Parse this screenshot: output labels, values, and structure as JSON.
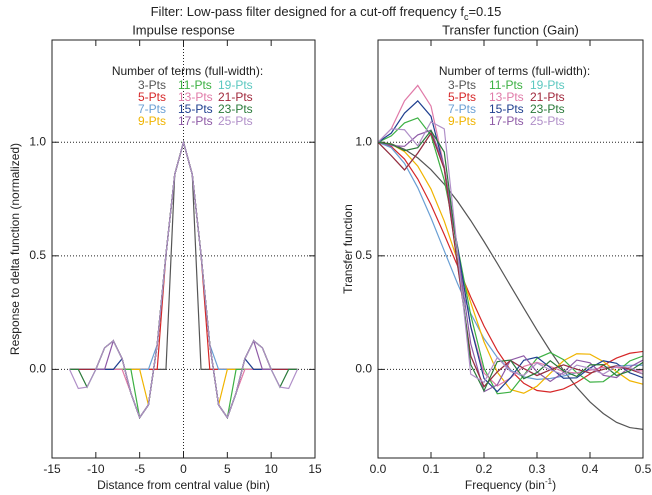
{
  "title": "Filter: Low-pass filter designed for a cut-off frequency f",
  "title_subscript": "c",
  "title_suffix": "=0.15",
  "chart_data": [
    {
      "type": "line",
      "title": "Impulse response",
      "xlabel": "Distance from central value (bin)",
      "ylabel": "Response to delta function (normalized)",
      "legend_title": "Number of terms (full-width):",
      "grid": true,
      "zero_vline": true,
      "xlim": [
        -15,
        15
      ],
      "xticks": [
        -15,
        -10,
        -5,
        0,
        5,
        10,
        15
      ],
      "ylim": [
        -0.39,
        1.45
      ],
      "yticks": [
        {
          "value": 0,
          "label": "0.0"
        },
        {
          "value": 0.5,
          "label": "0.5"
        },
        {
          "value": 1,
          "label": "1.0"
        }
      ],
      "x": [
        -13,
        -12,
        -11,
        -10,
        -9,
        -8,
        -7,
        -6,
        -5,
        -4,
        -3,
        -2,
        -1,
        0,
        1,
        2,
        3,
        4,
        5,
        6,
        7,
        8,
        9,
        10,
        11,
        12,
        13
      ],
      "series": [
        {
          "name": "3-Pts",
          "color": "#555555",
          "values": [
            0,
            0,
            0,
            0,
            0,
            0,
            0,
            0,
            0,
            0,
            0,
            0,
            0.858,
            1,
            0.858,
            0,
            0,
            0,
            0,
            0,
            0,
            0,
            0,
            0,
            0,
            0,
            0
          ]
        },
        {
          "name": "5-Pts",
          "color": "#d62728",
          "values": [
            0,
            0,
            0,
            0,
            0,
            0,
            0,
            0,
            0,
            0,
            0,
            0.505,
            0.858,
            1,
            0.858,
            0.505,
            0,
            0,
            0,
            0,
            0,
            0,
            0,
            0,
            0,
            0,
            0
          ]
        },
        {
          "name": "7-Pts",
          "color": "#6a9fd4",
          "values": [
            0,
            0,
            0,
            0,
            0,
            0,
            0,
            0,
            0,
            0,
            0.109,
            0.505,
            0.858,
            1,
            0.858,
            0.505,
            0.109,
            0,
            0,
            0,
            0,
            0,
            0,
            0,
            0,
            0,
            0
          ]
        },
        {
          "name": "9-Pts",
          "color": "#f0b400",
          "values": [
            0,
            0,
            0,
            0,
            0,
            0,
            0,
            0,
            0,
            -0.156,
            0.109,
            0.505,
            0.858,
            1,
            0.858,
            0.505,
            0.109,
            -0.156,
            0,
            0,
            0,
            0,
            0,
            0,
            0,
            0,
            0
          ]
        },
        {
          "name": "11-Pts",
          "color": "#3cb043",
          "values": [
            0,
            0,
            0,
            0,
            0,
            0,
            0,
            0,
            -0.212,
            -0.156,
            0.109,
            0.505,
            0.858,
            1,
            0.858,
            0.505,
            0.109,
            -0.156,
            -0.212,
            0,
            0,
            0,
            0,
            0,
            0,
            0,
            0
          ]
        },
        {
          "name": "13-Pts",
          "color": "#e07aa8",
          "values": [
            0,
            0,
            0,
            0,
            0,
            0,
            0,
            -0.104,
            -0.212,
            -0.156,
            0.109,
            0.505,
            0.858,
            1,
            0.858,
            0.505,
            0.109,
            -0.156,
            -0.212,
            -0.104,
            0,
            0,
            0,
            0,
            0,
            0,
            0
          ]
        },
        {
          "name": "15-Pts",
          "color": "#1f3f8f",
          "values": [
            0,
            0,
            0,
            0,
            0,
            0,
            0.047,
            -0.104,
            -0.212,
            -0.156,
            0.109,
            0.505,
            0.858,
            1,
            0.858,
            0.505,
            0.109,
            -0.156,
            -0.212,
            -0.104,
            0.047,
            0,
            0,
            0,
            0,
            0,
            0
          ]
        },
        {
          "name": "17-Pts",
          "color": "#8e5aa6",
          "values": [
            0,
            0,
            0,
            0,
            0,
            0.126,
            0.047,
            -0.104,
            -0.212,
            -0.156,
            0.109,
            0.505,
            0.858,
            1,
            0.858,
            0.505,
            0.109,
            -0.156,
            -0.212,
            -0.104,
            0.047,
            0.126,
            0,
            0,
            0,
            0,
            0
          ]
        },
        {
          "name": "19-Pts",
          "color": "#5cc8c0",
          "values": [
            0,
            0,
            0,
            0,
            0.095,
            0.126,
            0.047,
            -0.104,
            -0.212,
            -0.156,
            0.109,
            0.505,
            0.858,
            1,
            0.858,
            0.505,
            0.109,
            -0.156,
            -0.212,
            -0.104,
            0.047,
            0.126,
            0.095,
            0,
            0,
            0,
            0
          ]
        },
        {
          "name": "21-Pts",
          "color": "#a0283c",
          "values": [
            0,
            0,
            0,
            0,
            0.095,
            0.126,
            0.047,
            -0.104,
            -0.212,
            -0.156,
            0.109,
            0.505,
            0.858,
            1,
            0.858,
            0.505,
            0.109,
            -0.156,
            -0.212,
            -0.104,
            0.047,
            0.126,
            0.095,
            0,
            0,
            0,
            0
          ]
        },
        {
          "name": "23-Pts",
          "color": "#2a7a3a",
          "values": [
            0,
            0,
            -0.078,
            0,
            0.095,
            0.126,
            0.047,
            -0.104,
            -0.212,
            -0.156,
            0.109,
            0.505,
            0.858,
            1,
            0.858,
            0.505,
            0.109,
            -0.156,
            -0.212,
            -0.104,
            0.047,
            0.126,
            0.095,
            0,
            -0.078,
            0,
            0
          ]
        },
        {
          "name": "25-Pts",
          "color": "#b08fc8",
          "values": [
            0,
            -0.084,
            -0.078,
            0,
            0.095,
            0.126,
            0.047,
            -0.104,
            -0.212,
            -0.156,
            0.109,
            0.505,
            0.858,
            1,
            0.858,
            0.505,
            0.109,
            -0.156,
            -0.212,
            -0.104,
            0.047,
            0.126,
            0.095,
            0,
            -0.078,
            -0.084,
            0
          ]
        }
      ]
    },
    {
      "type": "line",
      "title": "Transfer function (Gain)",
      "xlabel": "Frequency (bin",
      "xlabel_superscript": "-1",
      "xlabel_suffix": ")",
      "ylabel": "Transfer function",
      "legend_title": "Number of terms (full-width):",
      "grid": true,
      "xlim": [
        0,
        0.5
      ],
      "xticks": [
        {
          "value": 0,
          "label": "0.0"
        },
        {
          "value": 0.1,
          "label": "0.1"
        },
        {
          "value": 0.2,
          "label": "0.2"
        },
        {
          "value": 0.3,
          "label": "0.3"
        },
        {
          "value": 0.4,
          "label": "0.4"
        },
        {
          "value": 0.5,
          "label": "0.5"
        }
      ],
      "ylim": [
        -0.39,
        1.45
      ],
      "yticks": [
        {
          "value": 0,
          "label": "0.0"
        },
        {
          "value": 0.5,
          "label": "0.5"
        },
        {
          "value": 1,
          "label": "1.0"
        }
      ],
      "x": [
        0,
        0.025,
        0.05,
        0.075,
        0.1,
        0.125,
        0.15,
        0.175,
        0.2,
        0.225,
        0.25,
        0.275,
        0.3,
        0.325,
        0.35,
        0.375,
        0.4,
        0.425,
        0.45,
        0.475,
        0.5
      ],
      "series": [
        {
          "name": "3-Pts",
          "color": "#555555",
          "values": [
            1,
            0.993,
            0.969,
            0.931,
            0.879,
            0.815,
            0.74,
            0.655,
            0.563,
            0.467,
            0.368,
            0.27,
            0.173,
            0.081,
            -0.004,
            -0.079,
            -0.143,
            -0.194,
            -0.233,
            -0.256,
            -0.264
          ]
        },
        {
          "name": "5-Pts",
          "color": "#d62728",
          "values": [
            1,
            0.981,
            0.926,
            0.838,
            0.725,
            0.594,
            0.456,
            0.318,
            0.191,
            0.083,
            -0.003,
            -0.061,
            -0.093,
            -0.1,
            -0.086,
            -0.057,
            -0.02,
            0.018,
            0.05,
            0.071,
            0.079
          ]
        },
        {
          "name": "7-Pts",
          "color": "#6a9fd4",
          "values": [
            1,
            0.976,
            0.907,
            0.8,
            0.667,
            0.522,
            0.378,
            0.246,
            0.136,
            0.053,
            -0.003,
            -0.033,
            -0.044,
            -0.04,
            -0.029,
            -0.015,
            -0.002,
            0.008,
            0.015,
            0.018,
            0.019
          ]
        },
        {
          "name": "9-Pts",
          "color": "#f0b400",
          "values": [
            1,
            0.991,
            0.959,
            0.895,
            0.794,
            0.653,
            0.48,
            0.294,
            0.121,
            -0.012,
            -0.089,
            -0.105,
            -0.074,
            -0.017,
            0.038,
            0.069,
            0.067,
            0.035,
            -0.01,
            -0.05,
            -0.065
          ]
        },
        {
          "name": "11-Pts",
          "color": "#3cb043",
          "values": [
            1,
            1.028,
            1.085,
            1.107,
            1.031,
            0.833,
            0.543,
            0.239,
            0.005,
            -0.107,
            -0.1,
            -0.026,
            0.049,
            0.074,
            0.043,
            -0.015,
            -0.056,
            -0.054,
            -0.012,
            0.037,
            0.059
          ]
        },
        {
          "name": "13-Pts",
          "color": "#e07aa8",
          "values": [
            1,
            1.059,
            1.182,
            1.25,
            1.159,
            0.891,
            0.525,
            0.189,
            -0.016,
            -0.073,
            -0.038,
            0.013,
            0.031,
            0.013,
            -0.01,
            -0.016,
            -0.004,
            0.009,
            0.009,
            -0.001,
            -0.007
          ]
        },
        {
          "name": "15-Pts",
          "color": "#1f3f8f",
          "values": [
            1,
            1.04,
            1.128,
            1.182,
            1.114,
            0.885,
            0.538,
            0.188,
            -0.04,
            -0.098,
            -0.037,
            0.04,
            0.054,
            0.008,
            -0.039,
            -0.037,
            0.006,
            0.038,
            0.027,
            -0.015,
            -0.037
          ]
        },
        {
          "name": "17-Pts",
          "color": "#8e5aa6",
          "values": [
            1,
            0.985,
            0.982,
            1.032,
            1.053,
            0.894,
            0.521,
            0.113,
            -0.098,
            -0.068,
            0.041,
            0.06,
            -0.011,
            -0.053,
            -0.013,
            0.041,
            0.029,
            -0.026,
            -0.036,
            0.01,
            0.041
          ]
        },
        {
          "name": "19-Pts",
          "color": "#5cc8c0",
          "values": [
            1,
            0.941,
            0.878,
            0.952,
            1.04,
            0.883,
            0.461,
            0.059,
            -0.076,
            -0.011,
            0.039,
            0.004,
            -0.027,
            -0.002,
            0.02,
            0.001,
            -0.016,
            0,
            0.016,
            0.001,
            -0.02
          ]
        },
        {
          "name": "21-Pts",
          "color": "#a0283c",
          "values": [
            1,
            0.941,
            0.878,
            0.952,
            1.04,
            0.883,
            0.461,
            0.059,
            -0.076,
            -0.011,
            0.039,
            0.004,
            -0.027,
            -0.002,
            0.02,
            0.001,
            -0.016,
            0,
            0.016,
            0.001,
            -0.02
          ]
        },
        {
          "name": "23-Pts",
          "color": "#2a7a3a",
          "values": [
            1,
            0.991,
            0.963,
            0.976,
            1.051,
            0.957,
            0.509,
            0.021,
            -0.094,
            0.034,
            0.041,
            -0.041,
            -0.014,
            0.038,
            -0.007,
            -0.031,
            0.02,
            0.021,
            -0.027,
            -0.007,
            0.031
          ]
        },
        {
          "name": "25-Pts",
          "color": "#b08fc8",
          "values": [
            1,
            1.059,
            1.055,
            0.984,
            1.09,
            1.059,
            0.52,
            -0.021,
            -0.057,
            0.052,
            -0.009,
            -0.027,
            0.028,
            -0.002,
            -0.023,
            0.019,
            0.005,
            -0.021,
            0.014,
            0.009,
            -0.02
          ]
        }
      ]
    }
  ]
}
